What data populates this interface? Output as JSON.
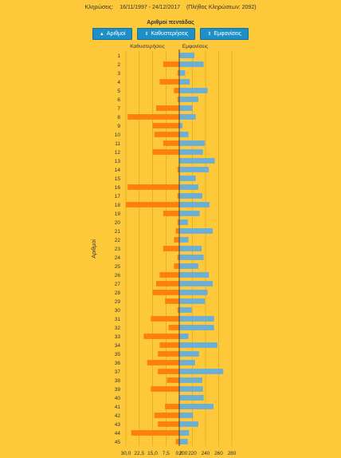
{
  "header": {
    "draws_label": "Κληρώσεις:",
    "date_range": "16/11/1997 - 24/12/2017",
    "draws_count": "(Πλήθος Κληρώσεων: 2092)"
  },
  "buttons": [
    {
      "label": "Αριθμοί",
      "icon": "sort-up-icon",
      "glyph": "▲"
    },
    {
      "label": "Καθυστερήσεις",
      "icon": "sort-both-icon",
      "glyph": "⇕"
    },
    {
      "label": "Εμφανίσεις",
      "icon": "sort-both-icon",
      "glyph": "⇕"
    }
  ],
  "colors": {
    "delay": "#ff7f0e",
    "appear": "#6baed6",
    "axis": "#333333",
    "grid": "#d4a01a"
  },
  "chart_data": {
    "type": "bar",
    "title": "Αριθμοί πεντάδας",
    "ylabel": "Αριθμοί",
    "left_label": "Καθυστερήσεις",
    "right_label": "Εμφανίσεις",
    "categories": [
      "1",
      "2",
      "3",
      "4",
      "5",
      "6",
      "7",
      "8",
      "9",
      "10",
      "11",
      "12",
      "13",
      "14",
      "15",
      "16",
      "17",
      "18",
      "19",
      "20",
      "21",
      "22",
      "23",
      "24",
      "25",
      "26",
      "27",
      "28",
      "29",
      "30",
      "31",
      "32",
      "33",
      "34",
      "35",
      "36",
      "37",
      "38",
      "39",
      "40",
      "41",
      "42",
      "43",
      "44",
      "45"
    ],
    "series": [
      {
        "name": "Καθυστερήσεις",
        "values": [
          0,
          9,
          1,
          11,
          3,
          1,
          13,
          29,
          15,
          14,
          9,
          15,
          0,
          1,
          0,
          29,
          1,
          30,
          9,
          1,
          2,
          3,
          9,
          1,
          3,
          11,
          13,
          15,
          8,
          1,
          16,
          6,
          20,
          11,
          12,
          18,
          12,
          7,
          16,
          0,
          8,
          14,
          12,
          27,
          2
        ]
      },
      {
        "name": "Εμφανίσεις",
        "values": [
          223,
          237,
          209,
          216,
          243,
          229,
          220,
          225,
          205,
          214,
          239,
          236,
          254,
          245,
          225,
          229,
          235,
          246,
          231,
          213,
          251,
          214,
          234,
          237,
          229,
          245,
          251,
          243,
          239,
          219,
          253,
          253,
          214,
          258,
          230,
          224,
          267,
          235,
          236,
          237,
          252,
          221,
          229,
          215,
          213
        ]
      }
    ],
    "left_ticks": [
      "30,0",
      "22,5",
      "15,0",
      "7,5",
      "0,0"
    ],
    "right_ticks": [
      "200",
      "220",
      "240",
      "260",
      "280"
    ],
    "left_range": [
      0,
      30
    ],
    "right_range": [
      200,
      280
    ],
    "grid": true
  }
}
